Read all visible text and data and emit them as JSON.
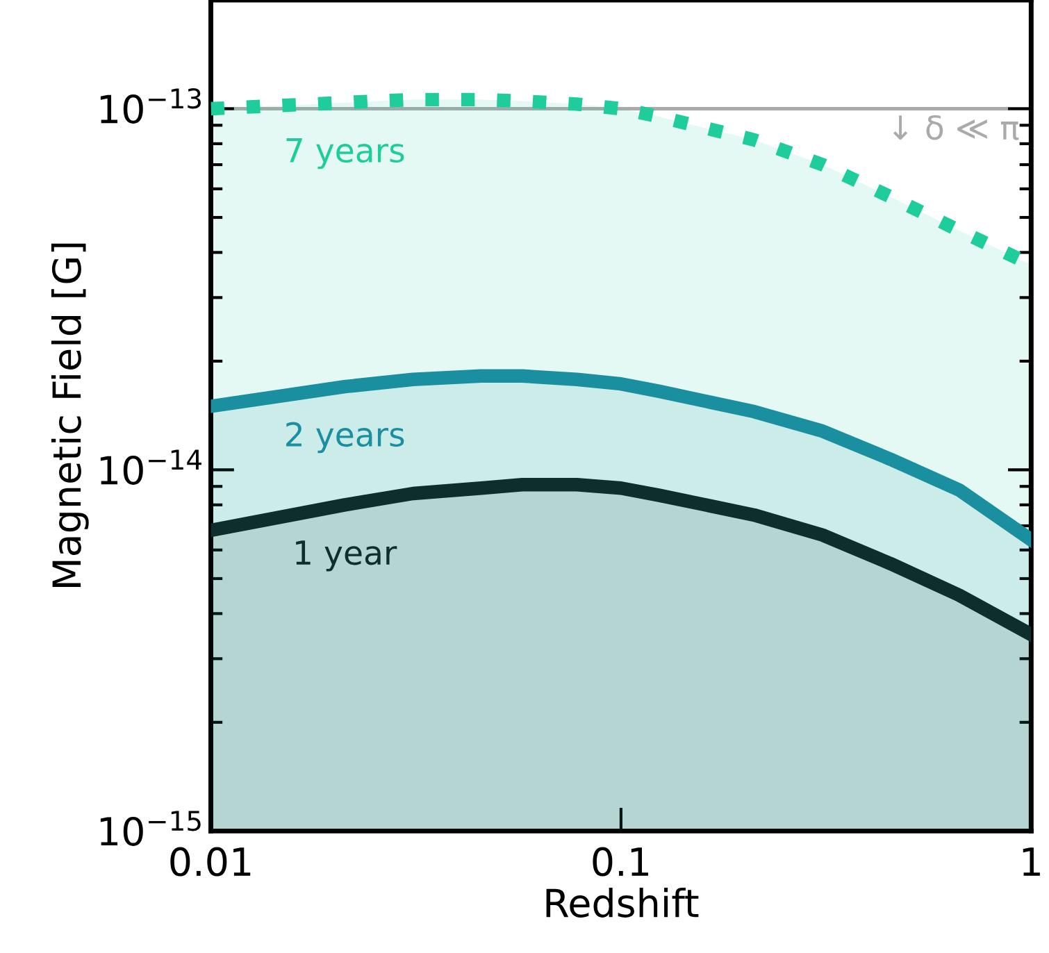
{
  "chart_data": {
    "type": "area",
    "xlabel": "Redshift",
    "ylabel": "Magnetic Field [G]",
    "log": "xy",
    "xlim": [
      0.01,
      1
    ],
    "ylim": [
      1e-15,
      2e-13
    ],
    "xticks": [
      0.01,
      0.1,
      1
    ],
    "yticks": [
      {
        "value": 1e-15,
        "label": "10$^{−15}$"
      },
      {
        "value": 1e-14,
        "label": "10$^{−14}$"
      },
      {
        "value": 1e-13,
        "label": "10$^{−13}$"
      }
    ],
    "grid": false,
    "legend": false,
    "series": [
      {
        "name": "7 years",
        "color": "#1fcc9c",
        "line_style": "dotted",
        "x": [
          0.01,
          0.0212,
          0.0311,
          0.0456,
          0.0574,
          0.078,
          0.1,
          0.124,
          0.211,
          0.31,
          0.454,
          0.667,
          1
        ],
        "values": [
          1e-13,
          1.04e-13,
          1.06e-13,
          1.06e-13,
          1.05e-13,
          1.03e-13,
          1e-13,
          9.5e-14,
          8.2e-14,
          7e-14,
          5.7e-14,
          4.6e-14,
          3.7e-14
        ]
      },
      {
        "name": "2 years",
        "color": "#1a8fa0",
        "line_style": "solid",
        "x": [
          0.01,
          0.0212,
          0.0311,
          0.0456,
          0.0574,
          0.078,
          0.1,
          0.124,
          0.211,
          0.31,
          0.454,
          0.667,
          1
        ],
        "values": [
          1.5e-14,
          1.7e-14,
          1.78e-14,
          1.82e-14,
          1.82e-14,
          1.78e-14,
          1.73e-14,
          1.65e-14,
          1.45e-14,
          1.28e-14,
          1.07e-14,
          8.8e-15,
          6.4e-15
        ]
      },
      {
        "name": "1 year",
        "color": "#0e2e2e",
        "line_style": "solid",
        "x": [
          0.01,
          0.0212,
          0.0311,
          0.0456,
          0.0574,
          0.078,
          0.1,
          0.124,
          0.211,
          0.31,
          0.454,
          0.667,
          1
        ],
        "values": [
          6.8e-15,
          8e-15,
          8.6e-15,
          8.9e-15,
          9.1e-15,
          9.1e-15,
          8.9e-15,
          8.5e-15,
          7.5e-15,
          6.6e-15,
          5.5e-15,
          4.5e-15,
          3.5e-15
        ]
      }
    ],
    "ref_lines": [
      {
        "axis": "y",
        "value": 1e-13,
        "label": "↓ δ ≪ π",
        "color": "#aaaaaa"
      }
    ]
  }
}
